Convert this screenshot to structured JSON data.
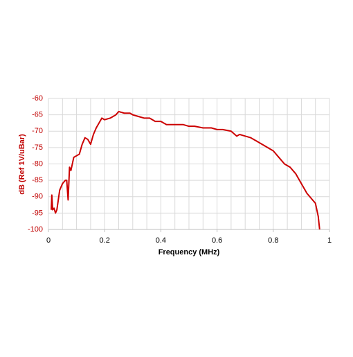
{
  "chart_data": {
    "type": "line",
    "xlabel": "Frequency (MHz)",
    "ylabel": "dB (Ref 1V/uBar)",
    "x": [
      0.01,
      0.012,
      0.015,
      0.02,
      0.025,
      0.03,
      0.04,
      0.05,
      0.06,
      0.065,
      0.07,
      0.075,
      0.08,
      0.09,
      0.1,
      0.11,
      0.12,
      0.13,
      0.14,
      0.15,
      0.16,
      0.17,
      0.18,
      0.19,
      0.2,
      0.22,
      0.24,
      0.25,
      0.27,
      0.29,
      0.3,
      0.32,
      0.34,
      0.36,
      0.38,
      0.4,
      0.42,
      0.45,
      0.48,
      0.5,
      0.52,
      0.55,
      0.58,
      0.6,
      0.62,
      0.65,
      0.67,
      0.68,
      0.7,
      0.72,
      0.74,
      0.76,
      0.78,
      0.8,
      0.82,
      0.84,
      0.86,
      0.88,
      0.9,
      0.92,
      0.94,
      0.95,
      0.96,
      0.965
    ],
    "values": [
      -94,
      -89.5,
      -94,
      -93.5,
      -95,
      -94,
      -88,
      -86,
      -85,
      -85,
      -91,
      -81,
      -82,
      -78,
      -77.5,
      -77,
      -74,
      -72,
      -72.5,
      -74,
      -71,
      -69,
      -67.5,
      -66,
      -66.5,
      -66,
      -65,
      -64,
      -64.5,
      -64.5,
      -65,
      -65.5,
      -66,
      -66,
      -67,
      -67,
      -68,
      -68,
      -68,
      -68.5,
      -68.5,
      -69,
      -69,
      -69.5,
      -69.5,
      -70,
      -71.5,
      -71,
      -71.5,
      -72,
      -73,
      -74,
      -75,
      -76,
      -78,
      -80,
      -81,
      -83,
      -86,
      -89,
      -91,
      -92,
      -96,
      -100
    ],
    "color": "#cc0000",
    "xlim": [
      0,
      1
    ],
    "xticks": [
      0,
      0.2,
      0.4,
      0.6,
      0.8,
      1
    ],
    "xgrid": [
      0,
      0.05,
      0.1,
      0.15,
      0.2,
      0.25,
      0.3,
      0.35,
      0.4,
      0.45,
      0.5,
      0.55,
      0.6,
      0.65,
      0.7,
      0.75,
      0.8,
      0.85,
      0.9,
      0.95,
      1
    ],
    "ylim": [
      -100,
      -60
    ],
    "yticks": [
      -100,
      -95,
      -90,
      -85,
      -80,
      -75,
      -70,
      -65,
      -60
    ],
    "grid": true
  }
}
